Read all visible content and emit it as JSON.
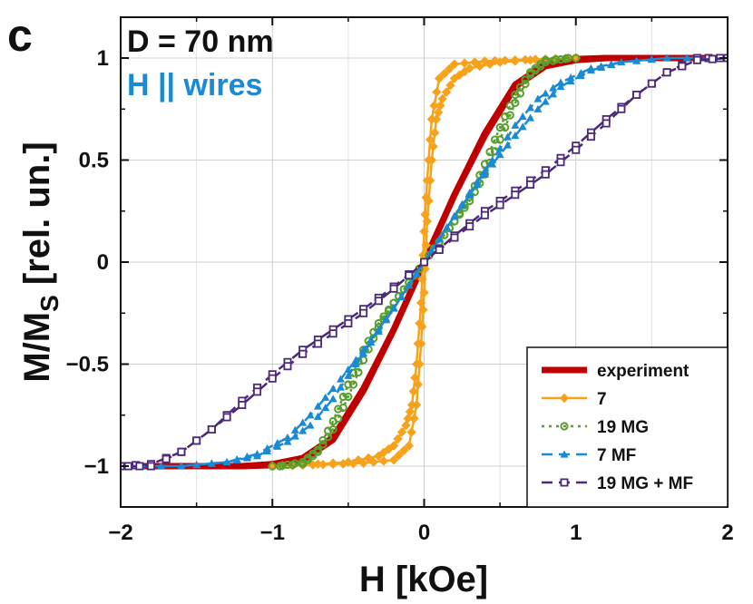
{
  "chart_data": {
    "type": "line",
    "panel_label": "c",
    "xlabel": "H [kOe]",
    "ylabel_main": "M/M",
    "ylabel_sub": "S",
    "ylabel_unit": " [rel. un.]",
    "xlim": [
      -2,
      2
    ],
    "ylim": [
      -1.2,
      1.2
    ],
    "xticks": [
      -2,
      -1,
      0,
      1,
      2
    ],
    "xtick_labels": [
      "−2",
      "−1",
      "0",
      "1",
      "2"
    ],
    "yticks": [
      -1,
      -0.5,
      0,
      0.5,
      1
    ],
    "ytick_labels": [
      "−1",
      "−0.5",
      "0",
      "0.5",
      "1"
    ],
    "grid": true,
    "annotations": [
      {
        "text": "D = 70 nm",
        "color": "#111111"
      },
      {
        "text": "H || wires",
        "color": "#1a8ad4"
      }
    ],
    "legend_position": "bottom-right",
    "series": [
      {
        "name": "experiment",
        "color": "#c00000",
        "marker": "none",
        "dash": "solid",
        "descending": [
          [
            2,
            1
          ],
          [
            1.5,
            1
          ],
          [
            1.2,
            1
          ],
          [
            1,
            0.99
          ],
          [
            0.8,
            0.96
          ],
          [
            0.6,
            0.86
          ],
          [
            0.4,
            0.62
          ],
          [
            0.2,
            0.33
          ],
          [
            0,
            0
          ],
          [
            -0.2,
            -0.33
          ],
          [
            -0.4,
            -0.63
          ],
          [
            -0.6,
            -0.87
          ],
          [
            -0.8,
            -0.97
          ],
          [
            -1,
            -0.995
          ],
          [
            -1.2,
            -1
          ],
          [
            -1.5,
            -1
          ],
          [
            -2,
            -1
          ]
        ],
        "ascending": [
          [
            -2,
            -1
          ],
          [
            -1.5,
            -1
          ],
          [
            -1.2,
            -1
          ],
          [
            -1,
            -0.99
          ],
          [
            -0.8,
            -0.96
          ],
          [
            -0.6,
            -0.86
          ],
          [
            -0.4,
            -0.62
          ],
          [
            -0.2,
            -0.33
          ],
          [
            0,
            0
          ],
          [
            0.2,
            0.33
          ],
          [
            0.4,
            0.63
          ],
          [
            0.6,
            0.87
          ],
          [
            0.8,
            0.97
          ],
          [
            1,
            0.995
          ],
          [
            1.2,
            1
          ],
          [
            1.5,
            1
          ],
          [
            2,
            1
          ]
        ]
      },
      {
        "name": "7",
        "color": "#f7a21b",
        "marker": "diamond",
        "dash": "solid",
        "descending": [
          [
            1,
            1
          ],
          [
            0.8,
            0.995
          ],
          [
            0.6,
            0.99
          ],
          [
            0.4,
            0.985
          ],
          [
            0.2,
            0.97
          ],
          [
            0.1,
            0.9
          ],
          [
            0.05,
            0.7
          ],
          [
            0.02,
            0.4
          ],
          [
            0,
            0.15
          ],
          [
            -0.02,
            -0.2
          ],
          [
            -0.05,
            -0.5
          ],
          [
            -0.08,
            -0.7
          ],
          [
            -0.12,
            -0.8
          ],
          [
            -0.2,
            -0.9
          ],
          [
            -0.3,
            -0.95
          ],
          [
            -0.5,
            -0.98
          ],
          [
            -0.8,
            -0.995
          ],
          [
            -1,
            -1
          ]
        ],
        "ascending": [
          [
            -1,
            -1
          ],
          [
            -0.8,
            -0.995
          ],
          [
            -0.6,
            -0.99
          ],
          [
            -0.4,
            -0.985
          ],
          [
            -0.2,
            -0.97
          ],
          [
            -0.1,
            -0.9
          ],
          [
            -0.05,
            -0.7
          ],
          [
            -0.02,
            -0.4
          ],
          [
            0,
            -0.15
          ],
          [
            0.02,
            0.2
          ],
          [
            0.05,
            0.5
          ],
          [
            0.08,
            0.7
          ],
          [
            0.12,
            0.8
          ],
          [
            0.2,
            0.9
          ],
          [
            0.3,
            0.95
          ],
          [
            0.5,
            0.98
          ],
          [
            0.8,
            0.995
          ],
          [
            1,
            1
          ]
        ]
      },
      {
        "name": "19 MG",
        "color": "#5a9e2c",
        "marker": "circle",
        "dash": "dotted",
        "descending": [
          [
            0.95,
            1
          ],
          [
            0.8,
            0.98
          ],
          [
            0.7,
            0.92
          ],
          [
            0.6,
            0.78
          ],
          [
            0.5,
            0.6
          ],
          [
            0.4,
            0.43
          ],
          [
            0.3,
            0.3
          ],
          [
            0.2,
            0.2
          ],
          [
            0.1,
            0.1
          ],
          [
            0,
            0
          ],
          [
            -0.1,
            -0.1
          ],
          [
            -0.2,
            -0.2
          ],
          [
            -0.3,
            -0.32
          ],
          [
            -0.4,
            -0.48
          ],
          [
            -0.5,
            -0.66
          ],
          [
            -0.6,
            -0.82
          ],
          [
            -0.7,
            -0.93
          ],
          [
            -0.8,
            -0.99
          ],
          [
            -1,
            -1
          ]
        ],
        "ascending": [
          [
            -0.95,
            -1
          ],
          [
            -0.8,
            -0.98
          ],
          [
            -0.7,
            -0.92
          ],
          [
            -0.6,
            -0.78
          ],
          [
            -0.5,
            -0.6
          ],
          [
            -0.4,
            -0.43
          ],
          [
            -0.3,
            -0.3
          ],
          [
            -0.2,
            -0.2
          ],
          [
            -0.1,
            -0.1
          ],
          [
            0,
            0
          ],
          [
            0.1,
            0.1
          ],
          [
            0.2,
            0.2
          ],
          [
            0.3,
            0.32
          ],
          [
            0.4,
            0.48
          ],
          [
            0.5,
            0.66
          ],
          [
            0.6,
            0.82
          ],
          [
            0.7,
            0.93
          ],
          [
            0.8,
            0.99
          ],
          [
            1,
            1
          ]
        ]
      },
      {
        "name": "7 MF",
        "color": "#1a8ad4",
        "marker": "triangle",
        "dash": "dashed",
        "descending": [
          [
            2,
            1
          ],
          [
            1.6,
            1
          ],
          [
            1.3,
            0.98
          ],
          [
            1.1,
            0.95
          ],
          [
            0.9,
            0.88
          ],
          [
            0.75,
            0.8
          ],
          [
            0.6,
            0.67
          ],
          [
            0.45,
            0.5
          ],
          [
            0.3,
            0.34
          ],
          [
            0.15,
            0.17
          ],
          [
            0,
            0
          ],
          [
            -0.15,
            -0.17
          ],
          [
            -0.3,
            -0.33
          ],
          [
            -0.45,
            -0.48
          ],
          [
            -0.6,
            -0.62
          ],
          [
            -0.75,
            -0.75
          ],
          [
            -0.9,
            -0.86
          ],
          [
            -1.1,
            -0.94
          ],
          [
            -1.3,
            -0.98
          ],
          [
            -1.6,
            -1
          ],
          [
            -2,
            -1
          ]
        ],
        "ascending": [
          [
            -2,
            -1
          ],
          [
            -1.6,
            -1
          ],
          [
            -1.3,
            -0.98
          ],
          [
            -1.1,
            -0.95
          ],
          [
            -0.9,
            -0.88
          ],
          [
            -0.75,
            -0.8
          ],
          [
            -0.6,
            -0.67
          ],
          [
            -0.45,
            -0.5
          ],
          [
            -0.3,
            -0.34
          ],
          [
            -0.15,
            -0.17
          ],
          [
            0,
            0
          ],
          [
            0.15,
            0.17
          ],
          [
            0.3,
            0.33
          ],
          [
            0.45,
            0.48
          ],
          [
            0.6,
            0.62
          ],
          [
            0.75,
            0.75
          ],
          [
            0.9,
            0.86
          ],
          [
            1.1,
            0.94
          ],
          [
            1.3,
            0.98
          ],
          [
            1.6,
            1
          ],
          [
            2,
            1
          ]
        ]
      },
      {
        "name": "19 MG + MF",
        "color": "#4b2a7a",
        "marker": "square_open",
        "dash": "dashed",
        "descending": [
          [
            1.95,
            1
          ],
          [
            1.8,
            1
          ],
          [
            1.6,
            0.93
          ],
          [
            1.4,
            0.82
          ],
          [
            1.2,
            0.7
          ],
          [
            1,
            0.57
          ],
          [
            0.8,
            0.45
          ],
          [
            0.6,
            0.35
          ],
          [
            0.4,
            0.25
          ],
          [
            0.2,
            0.13
          ],
          [
            0,
            0
          ],
          [
            -0.2,
            -0.12
          ],
          [
            -0.4,
            -0.23
          ],
          [
            -0.6,
            -0.33
          ],
          [
            -0.8,
            -0.43
          ],
          [
            -1,
            -0.55
          ],
          [
            -1.2,
            -0.68
          ],
          [
            -1.4,
            -0.82
          ],
          [
            -1.6,
            -0.93
          ],
          [
            -1.8,
            -0.99
          ],
          [
            -2,
            -1
          ]
        ],
        "ascending": [
          [
            -1.95,
            -1
          ],
          [
            -1.8,
            -1
          ],
          [
            -1.6,
            -0.93
          ],
          [
            -1.4,
            -0.82
          ],
          [
            -1.2,
            -0.7
          ],
          [
            -1,
            -0.57
          ],
          [
            -0.8,
            -0.45
          ],
          [
            -0.6,
            -0.35
          ],
          [
            -0.4,
            -0.25
          ],
          [
            -0.2,
            -0.13
          ],
          [
            0,
            0
          ],
          [
            0.2,
            0.12
          ],
          [
            0.4,
            0.23
          ],
          [
            0.6,
            0.33
          ],
          [
            0.8,
            0.43
          ],
          [
            1,
            0.55
          ],
          [
            1.2,
            0.68
          ],
          [
            1.4,
            0.82
          ],
          [
            1.6,
            0.93
          ],
          [
            1.8,
            0.99
          ],
          [
            2,
            1
          ]
        ]
      }
    ]
  }
}
